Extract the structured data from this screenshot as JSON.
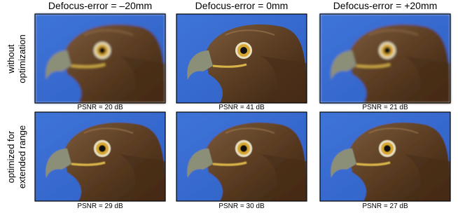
{
  "columns": [
    "Defocus-error = –20mm",
    "Defocus-error = 0mm",
    "Defocus-error = +20mm"
  ],
  "rows": [
    {
      "label_lines": [
        "without",
        "optimization"
      ],
      "psnr": [
        "PSNR = 20 dB",
        "PSNR = 41 dB",
        "PSNR = 21 dB"
      ]
    },
    {
      "label_lines": [
        "optimized for",
        "extended range"
      ],
      "psnr": [
        "PSNR = 29 dB",
        "PSNR = 30 dB",
        "PSNR = 27 dB"
      ]
    }
  ]
}
